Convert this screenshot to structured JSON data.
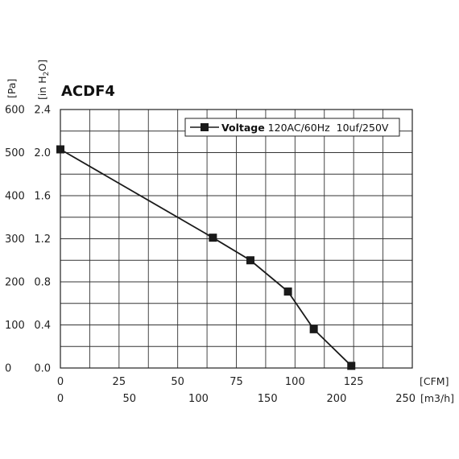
{
  "chart_data": {
    "type": "line",
    "title": "ACDF4",
    "unit_labels": {
      "pa": "[Pa]",
      "inh2o": "[in H",
      "inh2o_sub": "2",
      "inh2o_end": "O]",
      "cfm": "[CFM]",
      "m3h": "[m3/h]"
    },
    "y_ticks_pa": [
      "600",
      "500",
      "400",
      "300",
      "200",
      "100",
      "0"
    ],
    "y_ticks_inh2o": [
      "2.4",
      "2.0",
      "1.6",
      "1.2",
      "0.8",
      "0.4",
      "0.0"
    ],
    "x_ticks_cfm": [
      "0",
      "25",
      "50",
      "75",
      "100",
      "125"
    ],
    "x_ticks_m3h": [
      "0",
      "50",
      "100",
      "150",
      "200",
      "250"
    ],
    "xlim_cfm": [
      0,
      150
    ],
    "ylim_inh2o": [
      0,
      2.4
    ],
    "grid": true,
    "legend_position": "top-right",
    "series": [
      {
        "name_bold": "Voltage",
        "name_rest": " 120AC/60Hz  10uf/250V",
        "color": "#1a1a1a",
        "x": [
          0,
          65,
          81,
          97,
          108,
          124
        ],
        "y": [
          2.03,
          1.21,
          1.0,
          0.71,
          0.36,
          0.02
        ]
      }
    ]
  }
}
